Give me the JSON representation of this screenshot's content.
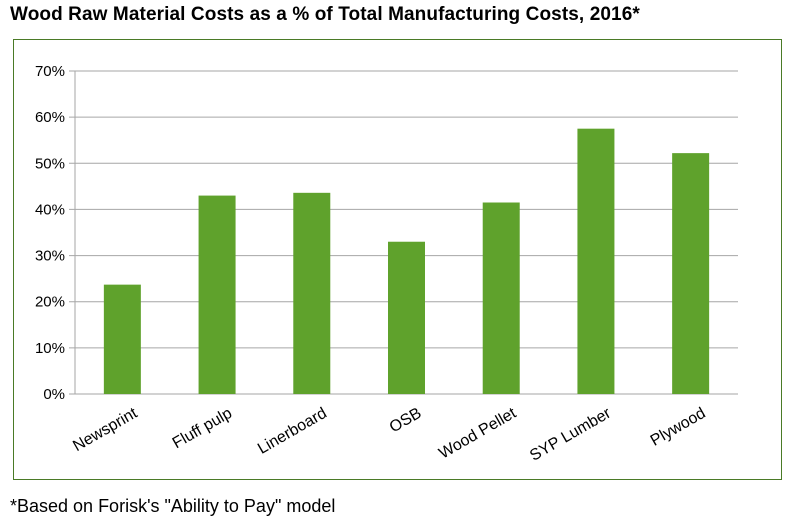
{
  "title": "Wood Raw Material Costs as a % of Total Manufacturing Costs, 2016*",
  "footnote": "*Based on Forisk's \"Ability to Pay\" model",
  "colors": {
    "bar": "#5fa22c",
    "grid": "#a6a6a6",
    "axis": "#a6a6a6",
    "frame": "#4a7a26"
  },
  "chart_data": {
    "type": "bar",
    "title": "Wood Raw Material Costs as a % of Total Manufacturing Costs, 2016*",
    "xlabel": "",
    "ylabel": "",
    "categories": [
      "Newsprint",
      "Fluff pulp",
      "Linerboard",
      "OSB",
      "Wood Pellet",
      "SYP Lumber",
      "Plywood"
    ],
    "values": [
      23.7,
      43.0,
      43.6,
      33.0,
      41.5,
      57.5,
      52.2
    ],
    "ylim": [
      0,
      70
    ],
    "yticks": [
      0,
      10,
      20,
      30,
      40,
      50,
      60,
      70
    ],
    "ytick_labels": [
      "0%",
      "10%",
      "20%",
      "30%",
      "40%",
      "50%",
      "60%",
      "70%"
    ],
    "grid": true,
    "legend": "none"
  }
}
